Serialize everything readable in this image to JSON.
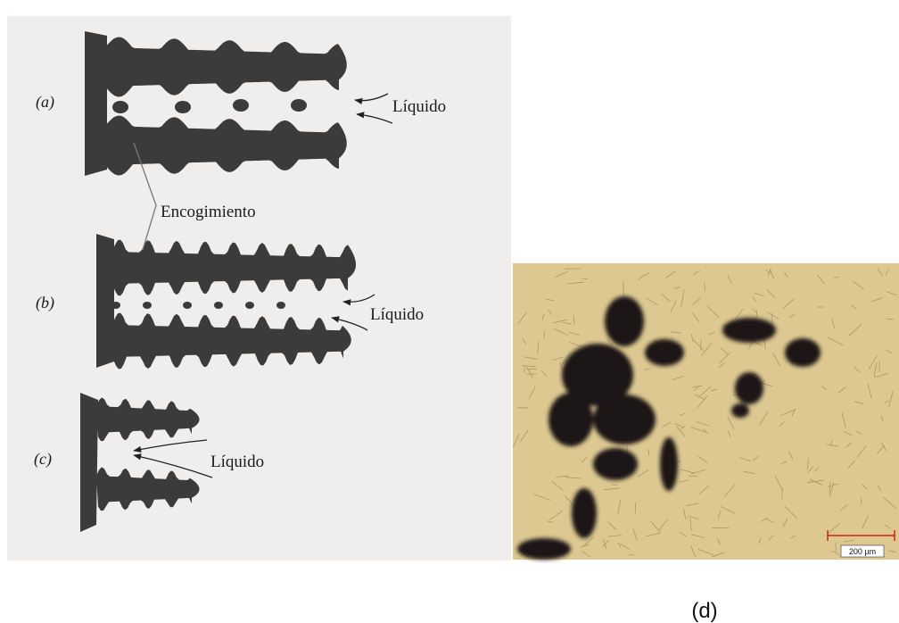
{
  "panels": [
    {
      "label": "(a)",
      "liquid": "Líquido"
    },
    {
      "label": "(b)",
      "liquid": "Líquido"
    },
    {
      "label": "(c)",
      "liquid": "Líquido"
    }
  ],
  "shrinkage": "Encogimiento",
  "micrograph": {
    "scale_bar": "200 µm",
    "label": "(d)"
  }
}
